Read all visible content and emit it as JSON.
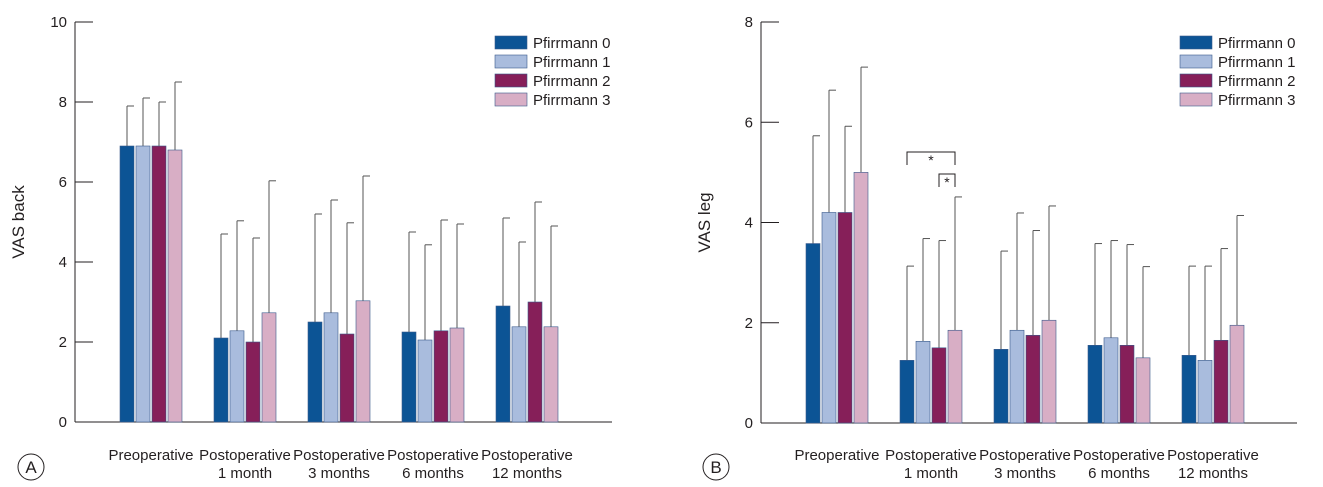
{
  "colors": {
    "pfirrmann0": "#0c5495",
    "pfirrmann1": "#a9bcdd",
    "pfirrmann2": "#861f59",
    "pfirrmann3": "#d8aec5",
    "axis": "#231f20",
    "error_bar": "#555555"
  },
  "chart_data": [
    {
      "type": "bar",
      "panel_label": "A",
      "title": "",
      "xlabel": "",
      "ylabel": "VAS back",
      "ylim": [
        0,
        10
      ],
      "yticks": [
        0,
        2,
        4,
        6,
        8,
        10
      ],
      "grid": false,
      "legend_position": "top-right",
      "categories": [
        [
          "Preoperative"
        ],
        [
          "Postoperative",
          "1 month"
        ],
        [
          "Postoperative",
          "3 months"
        ],
        [
          "Postoperative",
          "6 months"
        ],
        [
          "Postoperative",
          "12 months"
        ]
      ],
      "series": [
        {
          "name": "Pfirrmann 0",
          "color_key": "pfirrmann0",
          "values": [
            6.9,
            2.1,
            2.5,
            2.25,
            2.9
          ],
          "error": [
            1.0,
            2.6,
            2.7,
            2.5,
            2.2
          ]
        },
        {
          "name": "Pfirrmann 1",
          "color_key": "pfirrmann1",
          "values": [
            6.9,
            2.28,
            2.73,
            2.05,
            2.38
          ],
          "error": [
            1.2,
            2.75,
            2.82,
            2.38,
            2.12
          ]
        },
        {
          "name": "Pfirrmann 2",
          "color_key": "pfirrmann2",
          "values": [
            6.9,
            2.0,
            2.2,
            2.28,
            3.0
          ],
          "error": [
            1.1,
            2.6,
            2.78,
            2.77,
            2.5
          ]
        },
        {
          "name": "Pfirrmann 3",
          "color_key": "pfirrmann3",
          "values": [
            6.8,
            2.73,
            3.03,
            2.35,
            2.38
          ],
          "error": [
            1.7,
            3.3,
            3.12,
            2.6,
            2.52
          ]
        }
      ],
      "significance": []
    },
    {
      "type": "bar",
      "panel_label": "B",
      "title": "",
      "xlabel": "",
      "ylabel": "VAS leg",
      "ylim": [
        0,
        8
      ],
      "yticks": [
        0,
        2,
        4,
        6,
        8
      ],
      "grid": false,
      "legend_position": "top-right",
      "categories": [
        [
          "Preoperative"
        ],
        [
          "Postoperative",
          "1 month"
        ],
        [
          "Postoperative",
          "3 months"
        ],
        [
          "Postoperative",
          "6 months"
        ],
        [
          "Postoperative",
          "12 months"
        ]
      ],
      "series": [
        {
          "name": "Pfirrmann 0",
          "color_key": "pfirrmann0",
          "values": [
            3.58,
            1.25,
            1.47,
            1.55,
            1.35
          ],
          "error": [
            2.15,
            1.88,
            1.96,
            2.03,
            1.78
          ]
        },
        {
          "name": "Pfirrmann 1",
          "color_key": "pfirrmann1",
          "values": [
            4.2,
            1.63,
            1.85,
            1.7,
            1.25
          ],
          "error": [
            2.44,
            2.05,
            2.34,
            1.94,
            1.88
          ]
        },
        {
          "name": "Pfirrmann 2",
          "color_key": "pfirrmann2",
          "values": [
            4.2,
            1.5,
            1.75,
            1.55,
            1.65
          ],
          "error": [
            1.72,
            2.14,
            2.09,
            2.01,
            1.83
          ]
        },
        {
          "name": "Pfirrmann 3",
          "color_key": "pfirrmann3",
          "values": [
            5.0,
            1.85,
            2.05,
            1.3,
            1.95
          ],
          "error": [
            2.1,
            2.66,
            2.28,
            1.82,
            2.19
          ]
        }
      ],
      "significance": [
        {
          "category": 1,
          "from_series": 0,
          "to_series": 3,
          "label": "*"
        },
        {
          "category": 1,
          "from_series": 2,
          "to_series": 3,
          "label": "*"
        }
      ]
    }
  ]
}
